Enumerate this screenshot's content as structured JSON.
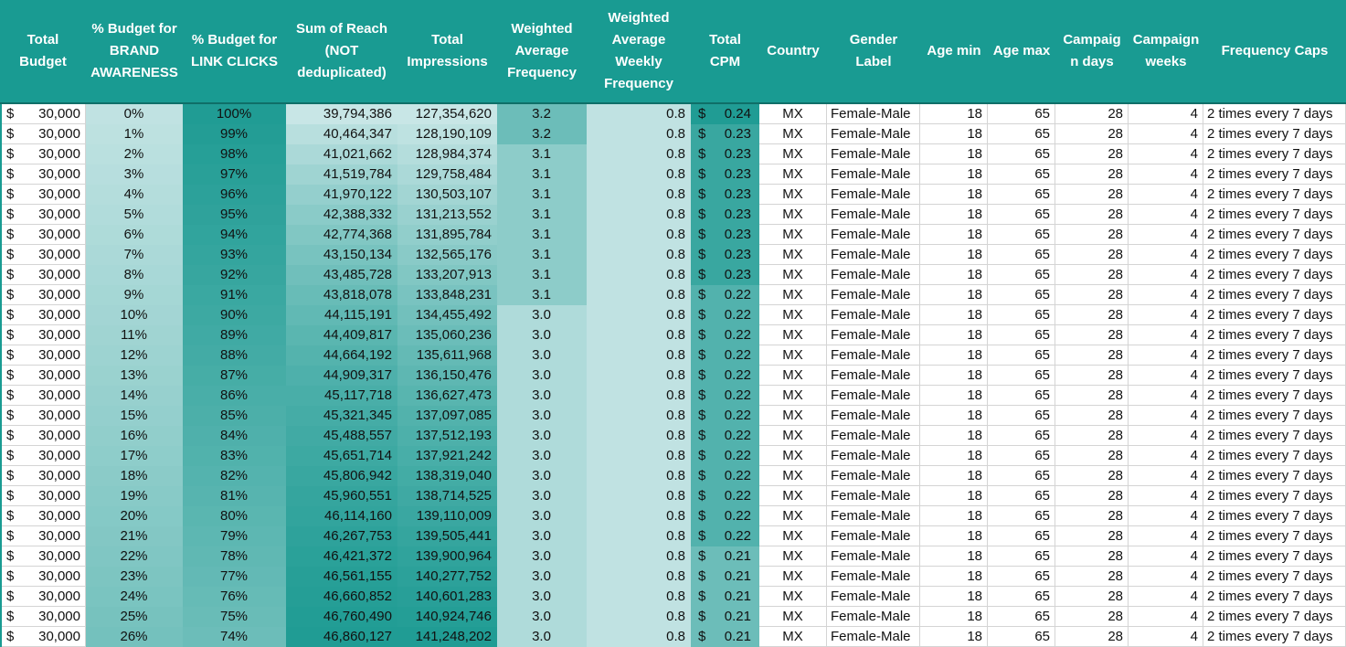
{
  "sheet": {
    "headers": [
      "Total\nBudget",
      "% Budget for\nBRAND\nAWARENESS",
      "% Budget for\nLINK CLICKS",
      "Sum of Reach\n(NOT\ndeduplicated)",
      "Total\nImpressions",
      "Weighted\nAverage\nFrequency",
      "Weighted\nAverage\nWeekly\nFrequency",
      "Total\nCPM",
      "Country",
      "Gender\nLabel",
      "Age min",
      "Age max",
      "Campaig\nn days",
      "Campaign\nweeks",
      "Frequency Caps"
    ],
    "currency_symbol": "$",
    "rows": [
      [
        "30,000",
        "0%",
        "100%",
        "39,794,386",
        "127,354,620",
        "3.2",
        "0.8",
        "0.24",
        "MX",
        "Female-Male",
        "18",
        "65",
        "28",
        "4",
        "2 times every 7 days"
      ],
      [
        "30,000",
        "1%",
        "99%",
        "40,464,347",
        "128,190,109",
        "3.2",
        "0.8",
        "0.23",
        "MX",
        "Female-Male",
        "18",
        "65",
        "28",
        "4",
        "2 times every 7 days"
      ],
      [
        "30,000",
        "2%",
        "98%",
        "41,021,662",
        "128,984,374",
        "3.1",
        "0.8",
        "0.23",
        "MX",
        "Female-Male",
        "18",
        "65",
        "28",
        "4",
        "2 times every 7 days"
      ],
      [
        "30,000",
        "3%",
        "97%",
        "41,519,784",
        "129,758,484",
        "3.1",
        "0.8",
        "0.23",
        "MX",
        "Female-Male",
        "18",
        "65",
        "28",
        "4",
        "2 times every 7 days"
      ],
      [
        "30,000",
        "4%",
        "96%",
        "41,970,122",
        "130,503,107",
        "3.1",
        "0.8",
        "0.23",
        "MX",
        "Female-Male",
        "18",
        "65",
        "28",
        "4",
        "2 times every 7 days"
      ],
      [
        "30,000",
        "5%",
        "95%",
        "42,388,332",
        "131,213,552",
        "3.1",
        "0.8",
        "0.23",
        "MX",
        "Female-Male",
        "18",
        "65",
        "28",
        "4",
        "2 times every 7 days"
      ],
      [
        "30,000",
        "6%",
        "94%",
        "42,774,368",
        "131,895,784",
        "3.1",
        "0.8",
        "0.23",
        "MX",
        "Female-Male",
        "18",
        "65",
        "28",
        "4",
        "2 times every 7 days"
      ],
      [
        "30,000",
        "7%",
        "93%",
        "43,150,134",
        "132,565,176",
        "3.1",
        "0.8",
        "0.23",
        "MX",
        "Female-Male",
        "18",
        "65",
        "28",
        "4",
        "2 times every 7 days"
      ],
      [
        "30,000",
        "8%",
        "92%",
        "43,485,728",
        "133,207,913",
        "3.1",
        "0.8",
        "0.23",
        "MX",
        "Female-Male",
        "18",
        "65",
        "28",
        "4",
        "2 times every 7 days"
      ],
      [
        "30,000",
        "9%",
        "91%",
        "43,818,078",
        "133,848,231",
        "3.1",
        "0.8",
        "0.22",
        "MX",
        "Female-Male",
        "18",
        "65",
        "28",
        "4",
        "2 times every 7 days"
      ],
      [
        "30,000",
        "10%",
        "90%",
        "44,115,191",
        "134,455,492",
        "3.0",
        "0.8",
        "0.22",
        "MX",
        "Female-Male",
        "18",
        "65",
        "28",
        "4",
        "2 times every 7 days"
      ],
      [
        "30,000",
        "11%",
        "89%",
        "44,409,817",
        "135,060,236",
        "3.0",
        "0.8",
        "0.22",
        "MX",
        "Female-Male",
        "18",
        "65",
        "28",
        "4",
        "2 times every 7 days"
      ],
      [
        "30,000",
        "12%",
        "88%",
        "44,664,192",
        "135,611,968",
        "3.0",
        "0.8",
        "0.22",
        "MX",
        "Female-Male",
        "18",
        "65",
        "28",
        "4",
        "2 times every 7 days"
      ],
      [
        "30,000",
        "13%",
        "87%",
        "44,909,317",
        "136,150,476",
        "3.0",
        "0.8",
        "0.22",
        "MX",
        "Female-Male",
        "18",
        "65",
        "28",
        "4",
        "2 times every 7 days"
      ],
      [
        "30,000",
        "14%",
        "86%",
        "45,117,718",
        "136,627,473",
        "3.0",
        "0.8",
        "0.22",
        "MX",
        "Female-Male",
        "18",
        "65",
        "28",
        "4",
        "2 times every 7 days"
      ],
      [
        "30,000",
        "15%",
        "85%",
        "45,321,345",
        "137,097,085",
        "3.0",
        "0.8",
        "0.22",
        "MX",
        "Female-Male",
        "18",
        "65",
        "28",
        "4",
        "2 times every 7 days"
      ],
      [
        "30,000",
        "16%",
        "84%",
        "45,488,557",
        "137,512,193",
        "3.0",
        "0.8",
        "0.22",
        "MX",
        "Female-Male",
        "18",
        "65",
        "28",
        "4",
        "2 times every 7 days"
      ],
      [
        "30,000",
        "17%",
        "83%",
        "45,651,714",
        "137,921,242",
        "3.0",
        "0.8",
        "0.22",
        "MX",
        "Female-Male",
        "18",
        "65",
        "28",
        "4",
        "2 times every 7 days"
      ],
      [
        "30,000",
        "18%",
        "82%",
        "45,806,942",
        "138,319,040",
        "3.0",
        "0.8",
        "0.22",
        "MX",
        "Female-Male",
        "18",
        "65",
        "28",
        "4",
        "2 times every 7 days"
      ],
      [
        "30,000",
        "19%",
        "81%",
        "45,960,551",
        "138,714,525",
        "3.0",
        "0.8",
        "0.22",
        "MX",
        "Female-Male",
        "18",
        "65",
        "28",
        "4",
        "2 times every 7 days"
      ],
      [
        "30,000",
        "20%",
        "80%",
        "46,114,160",
        "139,110,009",
        "3.0",
        "0.8",
        "0.22",
        "MX",
        "Female-Male",
        "18",
        "65",
        "28",
        "4",
        "2 times every 7 days"
      ],
      [
        "30,000",
        "21%",
        "79%",
        "46,267,753",
        "139,505,441",
        "3.0",
        "0.8",
        "0.22",
        "MX",
        "Female-Male",
        "18",
        "65",
        "28",
        "4",
        "2 times every 7 days"
      ],
      [
        "30,000",
        "22%",
        "78%",
        "46,421,372",
        "139,900,964",
        "3.0",
        "0.8",
        "0.21",
        "MX",
        "Female-Male",
        "18",
        "65",
        "28",
        "4",
        "2 times every 7 days"
      ],
      [
        "30,000",
        "23%",
        "77%",
        "46,561,155",
        "140,277,752",
        "3.0",
        "0.8",
        "0.21",
        "MX",
        "Female-Male",
        "18",
        "65",
        "28",
        "4",
        "2 times every 7 days"
      ],
      [
        "30,000",
        "24%",
        "76%",
        "46,660,852",
        "140,601,283",
        "3.0",
        "0.8",
        "0.21",
        "MX",
        "Female-Male",
        "18",
        "65",
        "28",
        "4",
        "2 times every 7 days"
      ],
      [
        "30,000",
        "25%",
        "75%",
        "46,760,490",
        "140,924,746",
        "3.0",
        "0.8",
        "0.21",
        "MX",
        "Female-Male",
        "18",
        "65",
        "28",
        "4",
        "2 times every 7 days"
      ],
      [
        "30,000",
        "26%",
        "74%",
        "46,860,127",
        "141,248,202",
        "3.0",
        "0.8",
        "0.21",
        "MX",
        "Female-Male",
        "18",
        "65",
        "28",
        "4",
        "2 times every 7 days"
      ]
    ]
  },
  "colors": {
    "header_bg": "#199B92",
    "header_text": "#FFFFFF",
    "scale_low": "#C8E6E6",
    "scale_high": "#209C94",
    "grid": "#D4D4D4"
  }
}
